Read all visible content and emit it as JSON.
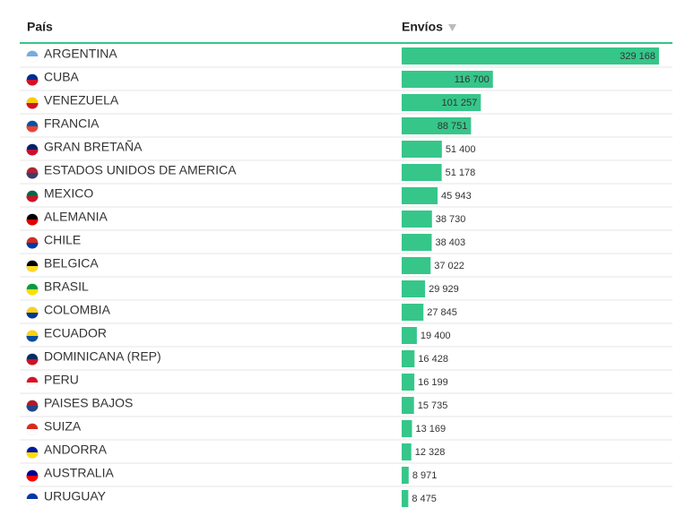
{
  "chart_data": {
    "type": "bar",
    "orientation": "horizontal",
    "category_header": "País",
    "value_header": "Envíos",
    "categories": [
      "ARGENTINA",
      "CUBA",
      "VENEZUELA",
      "FRANCIA",
      "GRAN BRETAÑA",
      "ESTADOS UNIDOS DE AMERICA",
      "MEXICO",
      "ALEMANIA",
      "CHILE",
      "BELGICA",
      "BRASIL",
      "COLOMBIA",
      "ECUADOR",
      "DOMINICANA (REP)",
      "PERU",
      "PAISES BAJOS",
      "SUIZA",
      "ANDORRA",
      "AUSTRALIA",
      "URUGUAY"
    ],
    "values": [
      329168,
      116700,
      101257,
      88751,
      51400,
      51178,
      45943,
      38730,
      38403,
      37022,
      29929,
      27845,
      19400,
      16428,
      16199,
      15735,
      13169,
      12328,
      8971,
      8475
    ],
    "value_labels": [
      "329 168",
      "116 700",
      "101 257",
      "88 751",
      "51 400",
      "51 178",
      "45 943",
      "38 730",
      "38 403",
      "37 022",
      "29 929",
      "27 845",
      "19 400",
      "16 428",
      "16 199",
      "15 735",
      "13 169",
      "12 328",
      "8 971",
      "8 475"
    ],
    "color": "#36c68a"
  }
}
